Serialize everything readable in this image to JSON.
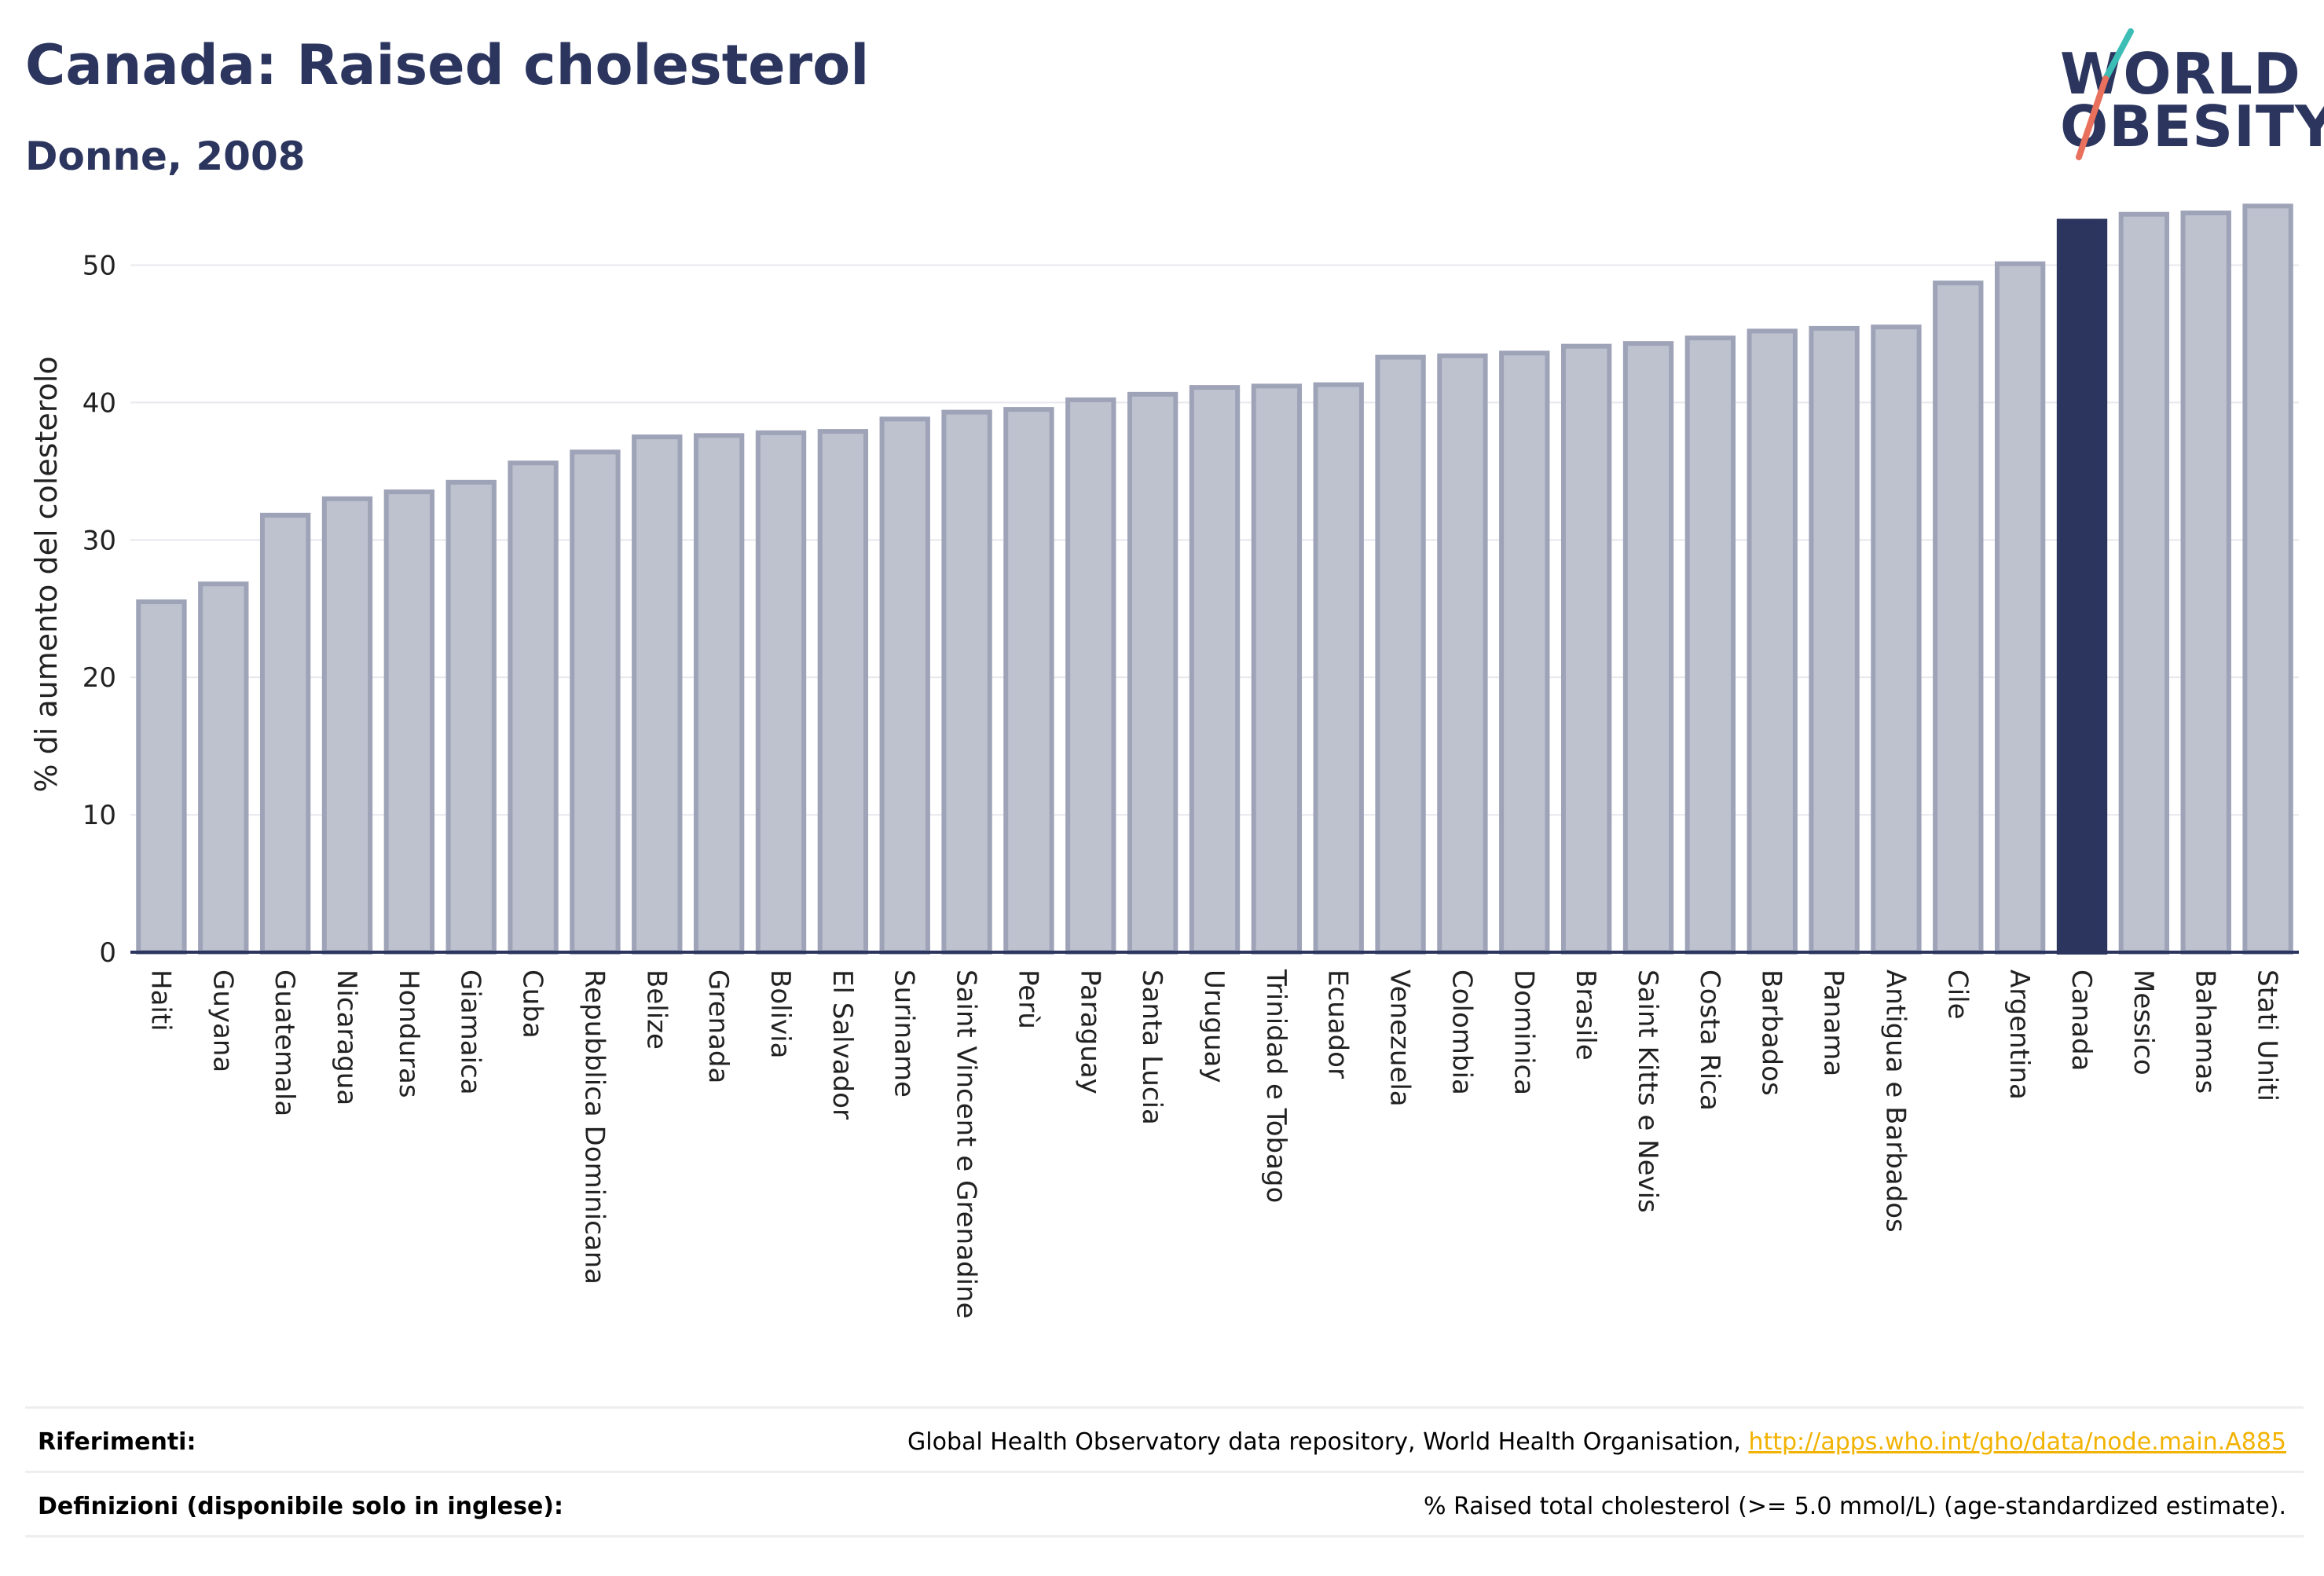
{
  "header": {
    "title": "Canada: Raised cholesterol",
    "subtitle": "Donne, 2008"
  },
  "logo": {
    "line1": "WORLD",
    "line2": "OBESITY",
    "icon": "world-obesity-logo"
  },
  "chart_data": {
    "type": "bar",
    "ylabel": "% di aumento del colesterolo",
    "xlabel": "",
    "ylim": [
      0,
      55
    ],
    "yticks": [
      0,
      10,
      20,
      30,
      40,
      50
    ],
    "grid": true,
    "highlight": "Canada",
    "colors": {
      "bar_fill": "#bec2cf",
      "bar_stroke": "#9ea3b8",
      "highlight_fill": "#2b355e",
      "axis": "#2b355e",
      "grid": "#e8e8ee"
    },
    "categories": [
      "Haiti",
      "Guyana",
      "Guatemala",
      "Nicaragua",
      "Honduras",
      "Giamaica",
      "Cuba",
      "Repubblica Dominicana",
      "Belize",
      "Grenada",
      "Bolivia",
      "El Salvador",
      "Suriname",
      "Saint Vincent e Grenadine",
      "Perù",
      "Paraguay",
      "Santa Lucia",
      "Uruguay",
      "Trinidad e Tobago",
      "Ecuador",
      "Venezuela",
      "Colombia",
      "Dominica",
      "Brasile",
      "Saint Kitts e Nevis",
      "Costa Rica",
      "Barbados",
      "Panama",
      "Antigua e Barbados",
      "Cile",
      "Argentina",
      "Canada",
      "Messico",
      "Bahamas",
      "Stati Uniti"
    ],
    "values": [
      25.5,
      26.8,
      31.8,
      33.0,
      33.5,
      34.2,
      35.6,
      36.4,
      37.5,
      37.6,
      37.8,
      37.9,
      38.8,
      39.3,
      39.5,
      40.2,
      40.6,
      41.1,
      41.2,
      41.3,
      43.3,
      43.4,
      43.6,
      44.1,
      44.3,
      44.7,
      45.2,
      45.4,
      45.5,
      48.7,
      50.1,
      53.2,
      53.7,
      53.8,
      54.3
    ]
  },
  "footer": {
    "references_label": "Riferimenti:",
    "references_text": "Global Health Observatory data repository, World Health Organisation, ",
    "references_link": "http://apps.who.int/gho/data/node.main.A885",
    "definitions_label": "Definizioni (disponibile solo in inglese):",
    "definitions_text": "% Raised total cholesterol (>= 5.0 mmol/L) (age-standardized estimate)."
  }
}
